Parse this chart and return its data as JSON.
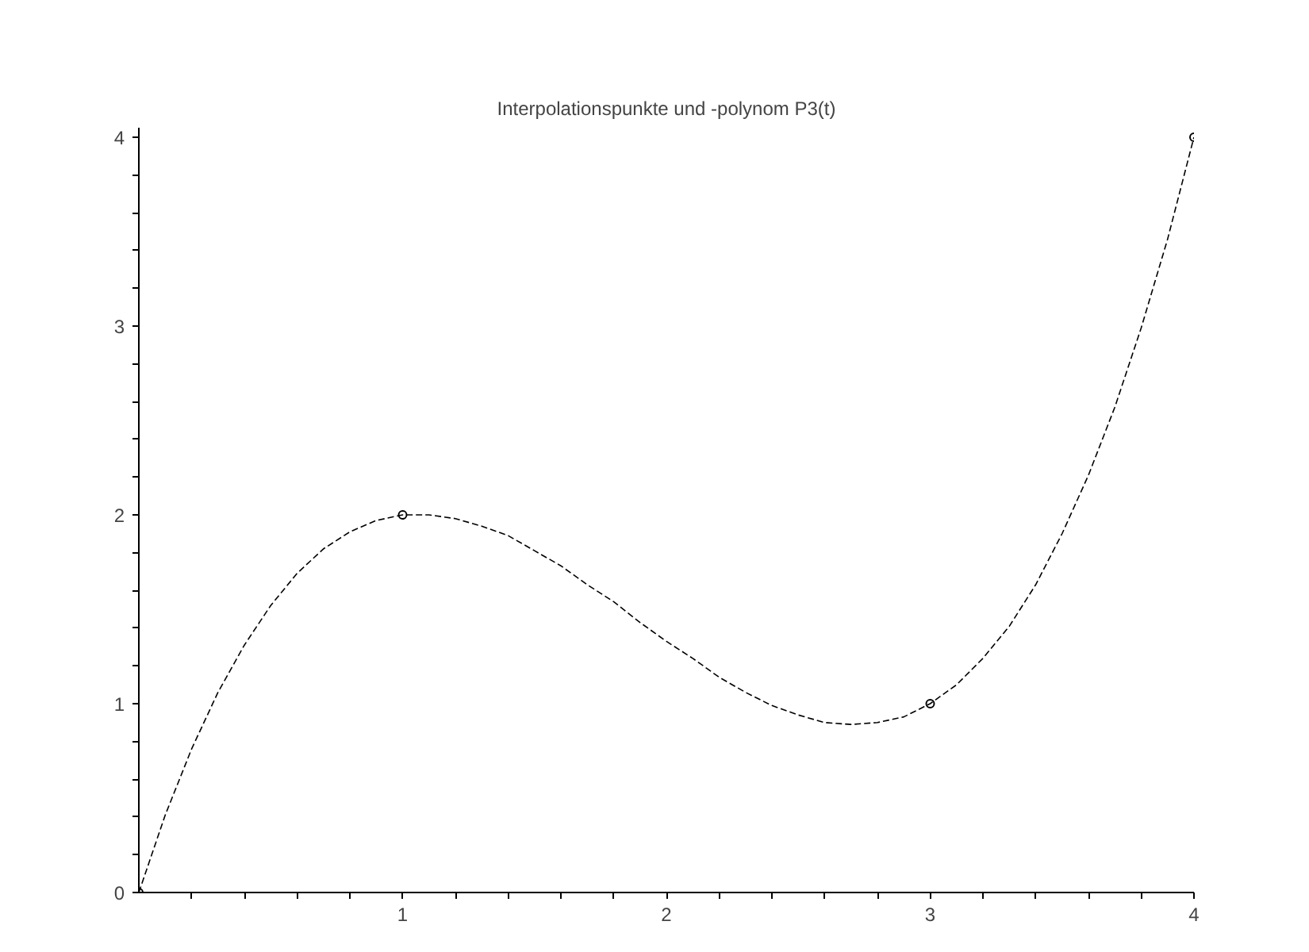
{
  "chart_data": {
    "type": "line",
    "title": "Interpolationspunkte und -polynom P3(t)",
    "xlim": [
      0,
      4
    ],
    "ylim": [
      0,
      4.05
    ],
    "xticks": [
      {
        "value": 0.2,
        "label": null
      },
      {
        "value": 0.4,
        "label": null
      },
      {
        "value": 0.6,
        "label": null
      },
      {
        "value": 0.8,
        "label": null
      },
      1,
      {
        "value": 1.2,
        "label": null
      },
      {
        "value": 1.4,
        "label": null
      },
      {
        "value": 1.6,
        "label": null
      },
      {
        "value": 1.8,
        "label": null
      },
      2,
      {
        "value": 2.2,
        "label": null
      },
      {
        "value": 2.4,
        "label": null
      },
      {
        "value": 2.6,
        "label": null
      },
      {
        "value": 2.8,
        "label": null
      },
      3,
      {
        "value": 3.2,
        "label": null
      },
      {
        "value": 3.4,
        "label": null
      },
      {
        "value": 3.6,
        "label": null
      },
      {
        "value": 3.8,
        "label": null
      },
      4
    ],
    "yticks": [
      0,
      {
        "value": 0.2,
        "label": null
      },
      {
        "value": 0.4,
        "label": null
      },
      {
        "value": 0.6,
        "label": null
      },
      {
        "value": 0.8,
        "label": null
      },
      1,
      {
        "value": 1.2,
        "label": null
      },
      {
        "value": 1.4,
        "label": null
      },
      {
        "value": 1.6,
        "label": null
      },
      {
        "value": 1.8,
        "label": null
      },
      2,
      {
        "value": 2.2,
        "label": null
      },
      {
        "value": 2.4,
        "label": null
      },
      {
        "value": 2.6,
        "label": null
      },
      {
        "value": 2.8,
        "label": null
      },
      3,
      {
        "value": 3.2,
        "label": null
      },
      {
        "value": 3.4,
        "label": null
      },
      {
        "value": 3.6,
        "label": null
      },
      {
        "value": 3.8,
        "label": null
      },
      4
    ],
    "grid": false,
    "series": [
      {
        "color": "#000000",
        "line_style": "dashed",
        "x": [
          0,
          0.1,
          0.2,
          0.3,
          0.4,
          0.5,
          0.6,
          0.7,
          0.8,
          0.9,
          1,
          1.1,
          1.2,
          1.3,
          1.4,
          1.5,
          1.6,
          1.7,
          1.8,
          1.9,
          2,
          2.1,
          2.2,
          2.3,
          2.4,
          2.5,
          2.6,
          2.7,
          2.8,
          2.9,
          3,
          3.1,
          3.2,
          3.3,
          3.4,
          3.5,
          3.6,
          3.7,
          3.8,
          3.9,
          4
        ],
        "values": [
          0,
          0.41,
          0.76,
          1.06,
          1.31,
          1.52,
          1.69,
          1.82,
          1.91,
          1.97,
          2,
          2.0,
          1.98,
          1.94,
          1.89,
          1.81,
          1.73,
          1.63,
          1.54,
          1.43,
          1.33,
          1.24,
          1.14,
          1.06,
          0.99,
          0.94,
          0.9,
          0.89,
          0.9,
          0.93,
          1,
          1.1,
          1.24,
          1.41,
          1.63,
          1.9,
          2.21,
          2.57,
          2.99,
          3.46,
          4
        ]
      },
      {
        "type": "scatter",
        "color": "#000000",
        "marker": "circle",
        "x": [
          0,
          1,
          3,
          4
        ],
        "values": [
          0,
          2,
          1,
          4
        ]
      }
    ]
  }
}
